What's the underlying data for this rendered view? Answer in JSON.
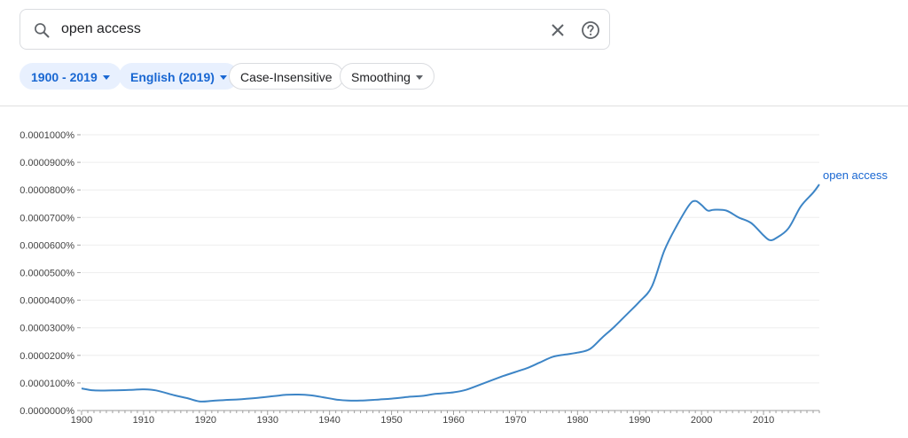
{
  "search": {
    "value": "open access",
    "placeholder": ""
  },
  "filters": {
    "year_range": "1900 - 2019",
    "corpus": "English (2019)",
    "case": "Case-Insensitive",
    "smoothing": "Smoothing"
  },
  "icons": {
    "search": "search-icon",
    "clear": "close-icon",
    "help": "help-icon"
  },
  "colors": {
    "accent": "#1967d2",
    "line": "#3d85c6",
    "chip_bg": "#e8f0fe"
  },
  "chart_data": {
    "type": "line",
    "ylim": [
      0,
      0.0001
    ],
    "xlim": [
      1900,
      2019
    ],
    "yticks": [
      "0.0000000%",
      "0.0000100%",
      "0.0000200%",
      "0.0000300%",
      "0.0000400%",
      "0.0000500%",
      "0.0000600%",
      "0.0000700%",
      "0.0000800%",
      "0.0000900%",
      "0.0001000%"
    ],
    "xticks": [
      "1900",
      "1910",
      "1920",
      "1930",
      "1940",
      "1950",
      "1960",
      "1970",
      "1980",
      "1990",
      "2000",
      "2010"
    ],
    "grid": true,
    "series": [
      {
        "name": "open access",
        "x": [
          1900,
          1902,
          1905,
          1908,
          1910,
          1912,
          1915,
          1917,
          1919,
          1921,
          1923,
          1925,
          1928,
          1931,
          1933,
          1935,
          1937,
          1939,
          1941,
          1943,
          1945,
          1948,
          1950,
          1953,
          1955,
          1957,
          1960,
          1962,
          1965,
          1968,
          1970,
          1972,
          1974,
          1976,
          1978,
          1980,
          1982,
          1984,
          1986,
          1988,
          1990,
          1992,
          1994,
          1996,
          1998,
          1999,
          2000,
          2001,
          2002,
          2004,
          2006,
          2008,
          2010,
          2011,
          2012,
          2014,
          2016,
          2018,
          2019
        ],
        "values": [
          8e-06,
          7.3e-06,
          7.3e-06,
          7.5e-06,
          7.7e-06,
          7.3e-06,
          5.5e-06,
          4.5e-06,
          3.3e-06,
          3.5e-06,
          3.8e-06,
          4e-06,
          4.5e-06,
          5.2e-06,
          5.7e-06,
          5.8e-06,
          5.5e-06,
          4.8e-06,
          4e-06,
          3.6e-06,
          3.6e-06,
          4e-06,
          4.3e-06,
          5e-06,
          5.3e-06,
          6e-06,
          6.6e-06,
          7.5e-06,
          1e-05,
          1.25e-05,
          1.4e-05,
          1.55e-05,
          1.75e-05,
          1.95e-05,
          2.03e-05,
          2.1e-05,
          2.23e-05,
          2.65e-05,
          3.05e-05,
          3.5e-05,
          3.95e-05,
          4.5e-05,
          5.8e-05,
          6.7e-05,
          7.45e-05,
          7.6e-05,
          7.45e-05,
          7.25e-05,
          7.28e-05,
          7.25e-05,
          7e-05,
          6.8e-05,
          6.35e-05,
          6.18e-05,
          6.25e-05,
          6.6e-05,
          7.4e-05,
          7.9e-05,
          8.2e-05
        ]
      }
    ]
  }
}
